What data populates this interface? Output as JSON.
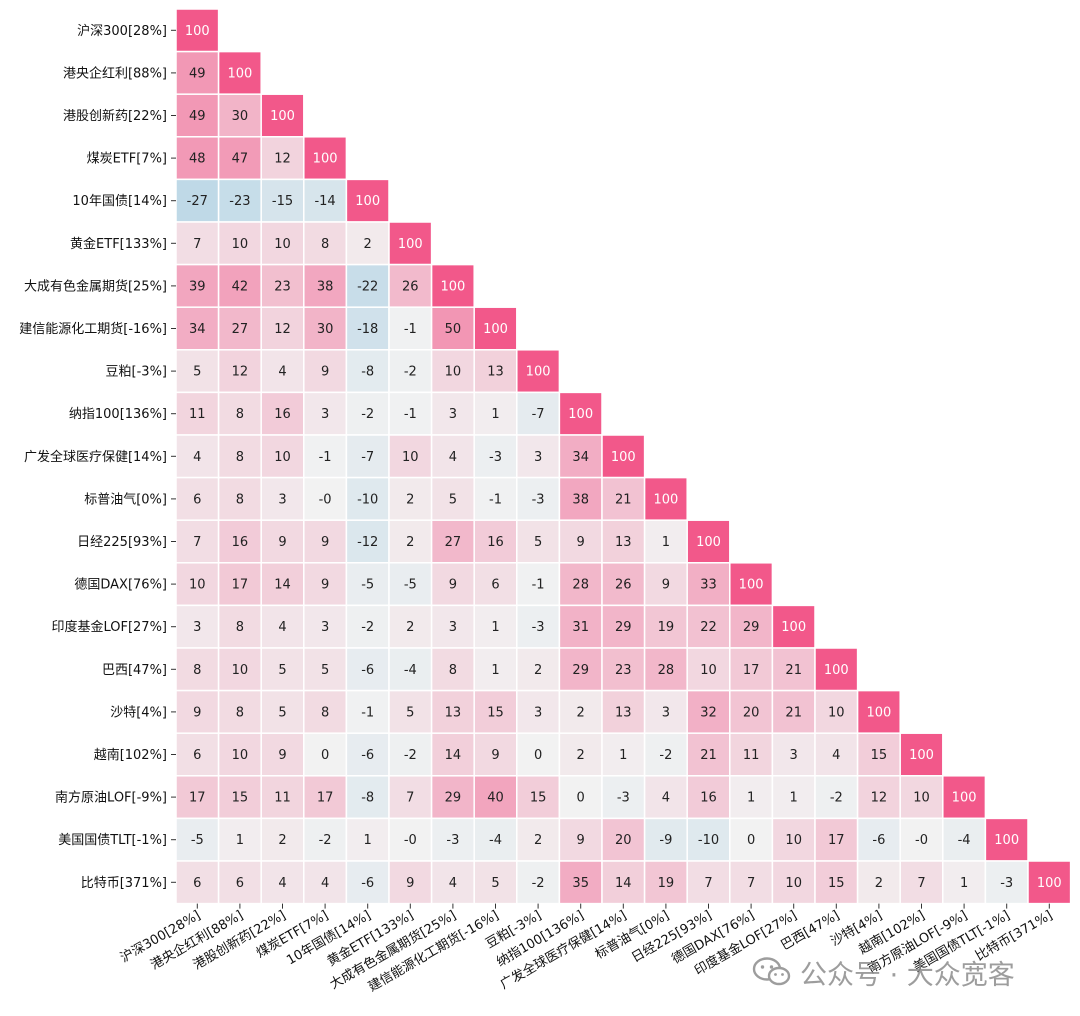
{
  "chart_data": {
    "type": "heatmap",
    "title": "",
    "xlabel": "",
    "ylabel": "",
    "triangle": "lower",
    "colorscale": {
      "negative": "#b9d6e6",
      "neutral": "#f2f2f2",
      "positive": "#f2588a",
      "range": [
        -100,
        100
      ]
    },
    "labels": [
      "沪深300[28%]",
      "港央企红利[88%]",
      "港股创新药[22%]",
      "煤炭ETF[7%]",
      "10年国债[14%]",
      "黄金ETF[133%]",
      "大成有色金属期货[25%]",
      "建信能源化工期货[-16%]",
      "豆粕[-3%]",
      "纳指100[136%]",
      "广发全球医疗保健[14%]",
      "标普油气[0%]",
      "日经225[93%]",
      "德国DAX[76%]",
      "印度基金LOF[27%]",
      "巴西[47%]",
      "沙特[4%]",
      "越南[102%]",
      "南方原油LOF[-9%]",
      "美国国债TLT[-1%]",
      "比特币[371%]"
    ],
    "matrix": [
      [
        "100"
      ],
      [
        "49",
        "100"
      ],
      [
        "49",
        "30",
        "100"
      ],
      [
        "48",
        "47",
        "12",
        "100"
      ],
      [
        "-27",
        "-23",
        "-15",
        "-14",
        "100"
      ],
      [
        "7",
        "10",
        "10",
        "8",
        "2",
        "100"
      ],
      [
        "39",
        "42",
        "23",
        "38",
        "-22",
        "26",
        "100"
      ],
      [
        "34",
        "27",
        "12",
        "30",
        "-18",
        "-1",
        "50",
        "100"
      ],
      [
        "5",
        "12",
        "4",
        "9",
        "-8",
        "-2",
        "10",
        "13",
        "100"
      ],
      [
        "11",
        "8",
        "16",
        "3",
        "-2",
        "-1",
        "3",
        "1",
        "-7",
        "100"
      ],
      [
        "4",
        "8",
        "10",
        "-1",
        "-7",
        "10",
        "4",
        "-3",
        "3",
        "34",
        "100"
      ],
      [
        "6",
        "8",
        "3",
        "-0",
        "-10",
        "2",
        "5",
        "-1",
        "-3",
        "38",
        "21",
        "100"
      ],
      [
        "7",
        "16",
        "9",
        "9",
        "-12",
        "2",
        "27",
        "16",
        "5",
        "9",
        "13",
        "1",
        "100"
      ],
      [
        "10",
        "17",
        "14",
        "9",
        "-5",
        "-5",
        "9",
        "6",
        "-1",
        "28",
        "26",
        "9",
        "33",
        "100"
      ],
      [
        "3",
        "8",
        "4",
        "3",
        "-2",
        "2",
        "3",
        "1",
        "-3",
        "31",
        "29",
        "19",
        "22",
        "29",
        "100"
      ],
      [
        "8",
        "10",
        "5",
        "5",
        "-6",
        "-4",
        "8",
        "1",
        "2",
        "29",
        "23",
        "28",
        "10",
        "17",
        "21",
        "100"
      ],
      [
        "9",
        "8",
        "5",
        "8",
        "-1",
        "5",
        "13",
        "15",
        "3",
        "2",
        "13",
        "3",
        "32",
        "20",
        "21",
        "10",
        "100"
      ],
      [
        "6",
        "10",
        "9",
        "0",
        "-6",
        "-2",
        "14",
        "9",
        "0",
        "2",
        "1",
        "-2",
        "21",
        "11",
        "3",
        "4",
        "15",
        "100"
      ],
      [
        "17",
        "15",
        "11",
        "17",
        "-8",
        "7",
        "29",
        "40",
        "15",
        "0",
        "-3",
        "4",
        "16",
        "1",
        "1",
        "-2",
        "12",
        "10",
        "100"
      ],
      [
        "-5",
        "1",
        "2",
        "-2",
        "1",
        "-0",
        "-3",
        "-4",
        "2",
        "9",
        "20",
        "-9",
        "-10",
        "0",
        "10",
        "17",
        "-6",
        "-0",
        "-4",
        "100"
      ],
      [
        "6",
        "6",
        "4",
        "4",
        "-6",
        "9",
        "4",
        "5",
        "-2",
        "35",
        "14",
        "19",
        "7",
        "7",
        "10",
        "15",
        "2",
        "7",
        "1",
        "-3",
        "100"
      ]
    ]
  },
  "watermark": {
    "text": "公众号 · 大众宽客",
    "icon": "wechat-icon"
  }
}
